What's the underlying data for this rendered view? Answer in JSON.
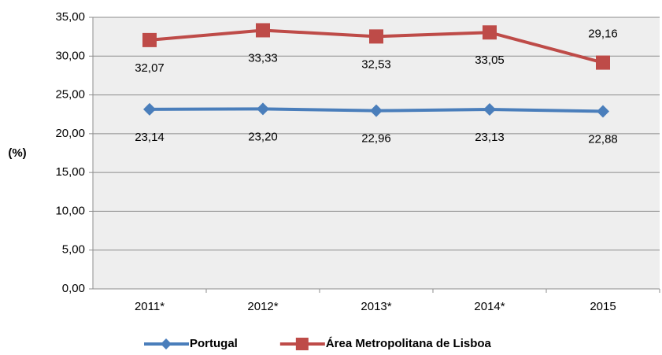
{
  "chart_data": {
    "type": "line",
    "y_label": "(%)",
    "categories": [
      "2011*",
      "2012*",
      "2013*",
      "2014*",
      "2015"
    ],
    "series": [
      {
        "name": "Portugal",
        "color": "#4a7ebb",
        "marker": "diamond",
        "values": [
          23.14,
          23.2,
          22.96,
          23.13,
          22.88
        ],
        "value_labels": [
          "23,14",
          "23,20",
          "22,96",
          "23,13",
          "22,88"
        ]
      },
      {
        "name": "Área Metropolitana de Lisboa",
        "color": "#be4b48",
        "marker": "square",
        "values": [
          32.07,
          33.33,
          32.53,
          33.05,
          29.16
        ],
        "value_labels": [
          "32,07",
          "33,33",
          "32,53",
          "33,05",
          "29,16"
        ]
      }
    ],
    "ylim": [
      0,
      35
    ],
    "yticks": [
      {
        "value": 0,
        "label": "0,00"
      },
      {
        "value": 5,
        "label": "5,00"
      },
      {
        "value": 10,
        "label": "10,00"
      },
      {
        "value": 15,
        "label": "15,00"
      },
      {
        "value": 20,
        "label": "20,00"
      },
      {
        "value": 25,
        "label": "25,00"
      },
      {
        "value": 30,
        "label": "30,00"
      },
      {
        "value": 35,
        "label": "35,00"
      }
    ],
    "grid": true,
    "legend": "bottom"
  }
}
